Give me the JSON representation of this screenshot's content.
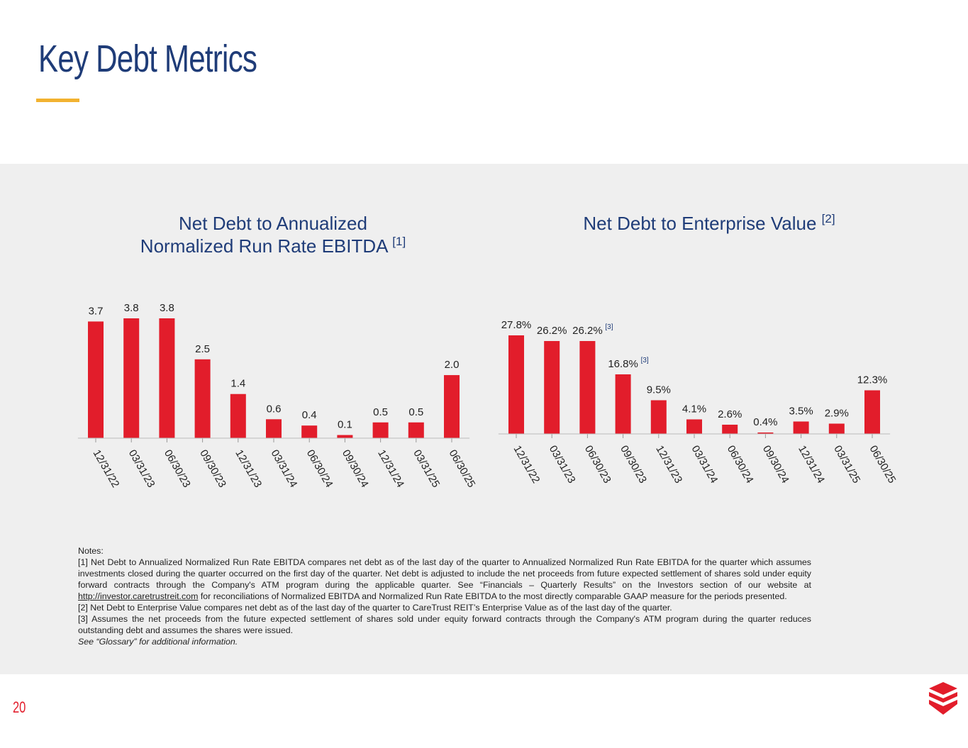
{
  "page": {
    "title": "Key Debt Metrics",
    "page_number": "20"
  },
  "colors": {
    "bar": "#e21d2b",
    "title": "#1f3c78",
    "accent": "#f2b230",
    "panel": "#efefef",
    "footnote_ref": "#1f3c78"
  },
  "chart_data": [
    {
      "type": "bar",
      "title_line1": "Net Debt to Annualized",
      "title_line2": "Normalized Run Rate EBITDA",
      "title_ref": "[1]",
      "categories": [
        "12/31/22",
        "03/31/23",
        "06/30/23",
        "09/30/23",
        "12/31/23",
        "03/31/24",
        "06/30/24",
        "09/30/24",
        "12/31/24",
        "03/31/25",
        "06/30/25"
      ],
      "values": [
        3.7,
        3.8,
        3.8,
        2.5,
        1.4,
        0.6,
        0.4,
        0.1,
        0.5,
        0.5,
        2.0
      ],
      "labels": [
        "3.7",
        "3.8",
        "3.8",
        "2.5",
        "1.4",
        "0.6",
        "0.4",
        "0.1",
        "0.5",
        "0.5",
        "2.0"
      ],
      "bar_refs": [],
      "ylim": [
        0,
        3.8
      ]
    },
    {
      "type": "bar",
      "title_line1": "Net Debt to Enterprise Value",
      "title_line2": "",
      "title_ref": "[2]",
      "categories": [
        "12/31/22",
        "03/31/23",
        "06/30/23",
        "09/30/23",
        "12/31/23",
        "03/31/24",
        "06/30/24",
        "09/30/24",
        "12/31/24",
        "03/31/25",
        "06/30/25"
      ],
      "values": [
        27.8,
        26.2,
        26.2,
        16.8,
        9.5,
        4.1,
        2.6,
        0.4,
        3.5,
        2.9,
        12.3
      ],
      "labels": [
        "27.8%",
        "26.2%",
        "26.2%",
        "16.8%",
        "9.5%",
        "4.1%",
        "2.6%",
        "0.4%",
        "3.5%",
        "2.9%",
        "12.3%"
      ],
      "bar_refs": [
        {
          "index": 2,
          "text": "[3]"
        },
        {
          "index": 3,
          "text": "[3]"
        }
      ],
      "ylim": [
        0,
        27.8
      ]
    }
  ],
  "notes": {
    "heading": "Notes:",
    "note1_a": "[1] Net Debt to Annualized Normalized Run Rate EBITDA compares net debt as of the last day of the quarter to Annualized Normalized Run Rate EBITDA for the quarter which assumes investments closed during the quarter occurred on the first day of the quarter. Net debt is adjusted to include the net proceeds from future expected settlement of shares sold under equity forward contracts through the Company's ATM program during the applicable quarter. See “Financials – Quarterly Results” on the Investors section of our website at ",
    "note1_link": "http://investor.caretrustreit.com",
    "note1_b": " for reconciliations of Normalized EBITDA and Normalized Run Rate EBITDA to the most directly comparable GAAP measure for the periods presented.",
    "note2": "[2] Net Debt to Enterprise Value compares net debt as of the last day of the quarter to CareTrust REIT’s Enterprise Value as of the last day of the quarter.",
    "note3": "[3] Assumes the net proceeds from the future expected settlement of shares sold under equity forward contracts through the Company's ATM program during the quarter reduces outstanding debt and assumes the shares were issued.",
    "glossary": "See “Glossary” for additional information."
  }
}
